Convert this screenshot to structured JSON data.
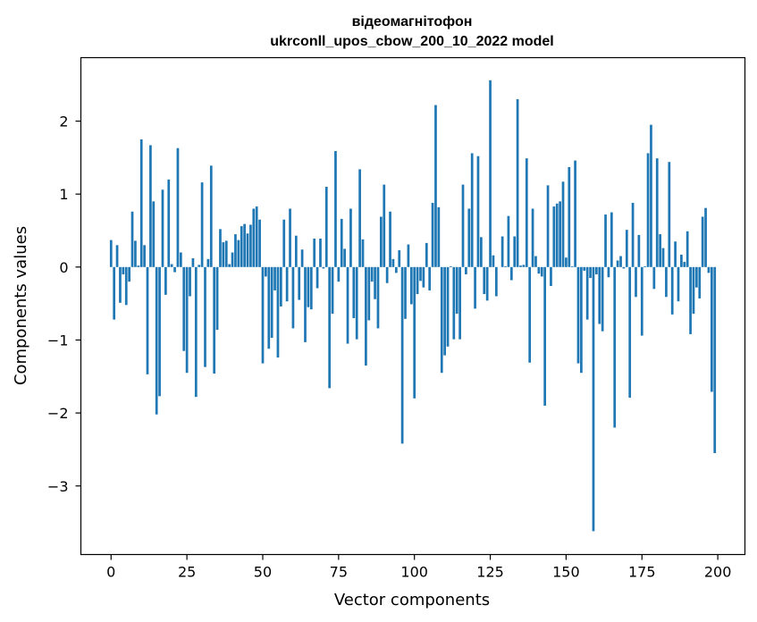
{
  "chart_data": {
    "type": "bar",
    "title": "відеомагнітофон",
    "subtitle": "ukrconll_upos_cbow_200_10_2022 model",
    "xlabel": "Vector components",
    "ylabel": "Components values",
    "xlim": [
      -9.95,
      208.95
    ],
    "ylim": [
      -3.94,
      2.87
    ],
    "x_ticks": [
      0,
      25,
      50,
      75,
      100,
      125,
      150,
      175,
      200
    ],
    "y_ticks": [
      -3,
      -2,
      -1,
      0,
      1,
      2
    ],
    "y_tick_labels": [
      "−3",
      "−2",
      "−1",
      "0",
      "1",
      "2"
    ],
    "bar_color": "#1f77b4",
    "grid": false,
    "legend": "none",
    "values": [
      0.37,
      -0.72,
      0.3,
      -0.49,
      -0.1,
      -0.52,
      -0.2,
      0.76,
      0.36,
      0.02,
      1.75,
      0.3,
      -1.47,
      1.67,
      0.9,
      -2.02,
      -1.77,
      1.06,
      -0.38,
      1.2,
      0.04,
      -0.07,
      1.63,
      0.2,
      -1.15,
      -1.45,
      -0.4,
      0.12,
      -1.78,
      0.03,
      1.16,
      -1.37,
      0.11,
      1.39,
      -1.46,
      -0.86,
      0.52,
      0.34,
      0.36,
      0.04,
      0.2,
      0.45,
      0.37,
      0.56,
      0.59,
      0.46,
      0.58,
      0.8,
      0.83,
      0.65,
      -1.32,
      -0.13,
      -1.12,
      -0.97,
      -0.32,
      -1.24,
      -0.54,
      0.65,
      -0.47,
      0.8,
      -0.84,
      0.43,
      -0.45,
      0.24,
      -1.03,
      -0.55,
      -0.58,
      0.39,
      -0.29,
      0.39,
      -0.02,
      1.1,
      -1.66,
      -0.64,
      1.59,
      -0.2,
      0.66,
      0.25,
      -1.05,
      0.8,
      -0.7,
      -0.99,
      1.34,
      0.38,
      -1.35,
      -0.73,
      -0.2,
      -0.44,
      -0.84,
      0.69,
      1.13,
      -0.22,
      0.76,
      0.11,
      -0.08,
      0.23,
      -2.42,
      -0.71,
      0.31,
      -0.51,
      -1.8,
      -0.37,
      -0.19,
      -0.28,
      0.33,
      -0.32,
      0.88,
      2.22,
      0.82,
      -1.45,
      -1.21,
      -1.09,
      0.01,
      -0.99,
      -0.64,
      -0.99,
      1.13,
      -0.1,
      0.8,
      1.56,
      -0.57,
      1.52,
      0.41,
      -0.37,
      -0.46,
      2.56,
      0.16,
      -0.4,
      0.0,
      0.42,
      0.01,
      0.7,
      -0.18,
      0.42,
      2.3,
      0.02,
      0.03,
      1.49,
      -1.31,
      0.8,
      0.15,
      -0.09,
      -0.13,
      -1.9,
      1.12,
      -0.26,
      0.83,
      0.87,
      0.9,
      1.17,
      0.13,
      1.37,
      0.01,
      1.46,
      -1.32,
      -1.45,
      -0.05,
      -0.72,
      -0.15,
      -3.62,
      -0.1,
      -0.78,
      -0.88,
      0.72,
      -0.14,
      0.75,
      -2.2,
      0.09,
      0.15,
      -0.02,
      0.51,
      -1.79,
      0.88,
      -0.41,
      0.44,
      -0.94,
      0.01,
      1.56,
      1.95,
      -0.3,
      1.49,
      0.45,
      0.26,
      -0.41,
      1.44,
      -0.65,
      0.35,
      -0.47,
      0.17,
      0.07,
      0.49,
      -0.92,
      -0.64,
      -0.28,
      -0.43,
      0.69,
      0.81,
      -0.08,
      -1.71,
      -2.55
    ]
  }
}
